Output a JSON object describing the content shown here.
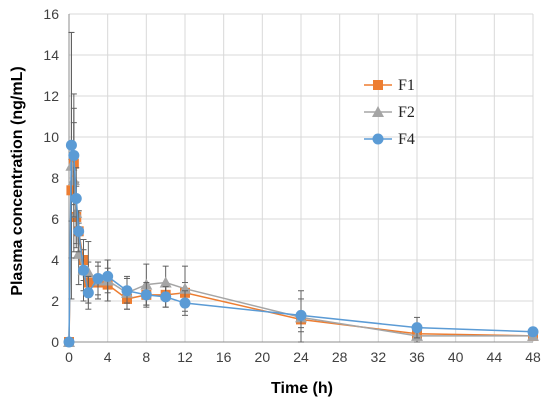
{
  "chart_data": {
    "type": "line",
    "xlabel": "Time (h)",
    "ylabel": "Plasma concentration (ng/mL)",
    "xlim": [
      0,
      48
    ],
    "ylim": [
      0,
      16
    ],
    "xticks": [
      0,
      4,
      8,
      12,
      16,
      20,
      24,
      28,
      32,
      36,
      40,
      44,
      48
    ],
    "yticks": [
      0,
      2,
      4,
      6,
      8,
      10,
      12,
      14,
      16
    ],
    "grid": true,
    "legend_position": "right",
    "series": [
      {
        "name": "F1",
        "color": "#ED7D31",
        "marker": "square",
        "x": [
          0,
          0.25,
          0.5,
          0.75,
          1,
          1.5,
          2,
          3,
          4,
          6,
          8,
          10,
          12,
          24,
          36,
          48
        ],
        "y": [
          0,
          7.4,
          8.7,
          6.1,
          5.4,
          4.0,
          2.9,
          2.9,
          2.8,
          2.1,
          2.3,
          2.3,
          2.4,
          1.1,
          0.4,
          0.3
        ],
        "err": [
          0,
          1.5,
          2.0,
          1.5,
          1.0,
          1.0,
          1.0,
          0.8,
          0.8,
          0.5,
          0.5,
          0.6,
          0.5,
          0.4,
          0.3,
          0.1
        ]
      },
      {
        "name": "F2",
        "color": "#A5A5A5",
        "marker": "triangle",
        "x": [
          0,
          0.25,
          0.5,
          0.75,
          1,
          1.5,
          2,
          3,
          4,
          6,
          8,
          10,
          12,
          24,
          36,
          48
        ],
        "y": [
          0,
          8.6,
          7.9,
          6.3,
          4.3,
          3.5,
          3.4,
          3.0,
          3.0,
          2.4,
          2.8,
          2.9,
          2.6,
          1.2,
          0.3,
          0.3
        ],
        "err": [
          0,
          6.5,
          3.5,
          1.5,
          1.5,
          1.5,
          1.5,
          0.9,
          1.0,
          0.8,
          1.0,
          0.8,
          1.1,
          1.3,
          0.3,
          0.1
        ]
      },
      {
        "name": "F4",
        "color": "#5B9BD5",
        "marker": "circle",
        "x": [
          0,
          0.25,
          0.5,
          0.75,
          1,
          1.5,
          2,
          3,
          4,
          6,
          8,
          10,
          12,
          24,
          36,
          48
        ],
        "y": [
          0,
          9.6,
          9.1,
          7.0,
          5.4,
          3.5,
          2.4,
          3.1,
          3.2,
          2.5,
          2.3,
          2.2,
          1.9,
          1.3,
          0.7,
          0.5
        ],
        "err": [
          0,
          5.5,
          3.0,
          1.5,
          1.0,
          1.0,
          0.8,
          0.8,
          0.8,
          0.6,
          0.6,
          0.5,
          0.6,
          0.8,
          0.5,
          0.1
        ]
      }
    ]
  }
}
